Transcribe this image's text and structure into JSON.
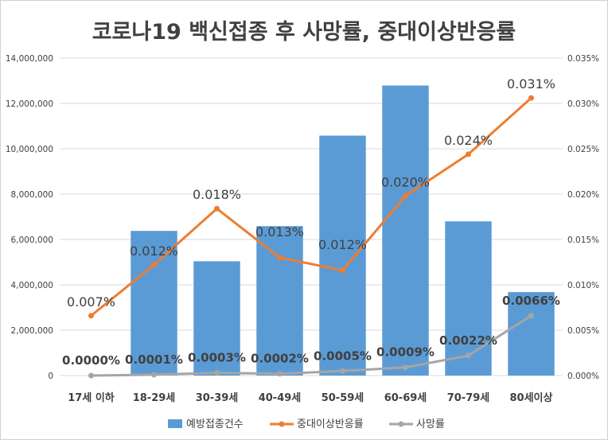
{
  "chart_data": {
    "type": "bar",
    "title": "코로나19 백신접종 후 사망률, 중대이상반응률",
    "categories": [
      "17세 이하",
      "18-29세",
      "30-39세",
      "40-49세",
      "50-59세",
      "60-69세",
      "70-79세",
      "80세이상"
    ],
    "ylim_left": [
      0,
      14000000
    ],
    "ylim_right": [
      0,
      0.035
    ],
    "left_ticks": [
      "0",
      "2,000,000",
      "4,000,000",
      "6,000,000",
      "8,000,000",
      "10,000,000",
      "12,000,000",
      "14,000,000"
    ],
    "right_ticks": [
      "0.000%",
      "0.005%",
      "0.010%",
      "0.015%",
      "0.020%",
      "0.025%",
      "0.030%",
      "0.035%"
    ],
    "grid": true,
    "legend_position": "bottom",
    "series": [
      {
        "name": "예방접종건수",
        "kind": "bar",
        "axis": "left",
        "color": "#5B9BD5",
        "values": [
          0,
          6380000,
          5040000,
          6590000,
          10580000,
          12790000,
          6800000,
          3680000
        ]
      },
      {
        "name": "중대이상반응률",
        "kind": "line",
        "axis": "right",
        "color": "#ED7D31",
        "values": [
          0.0066,
          0.0122,
          0.0184,
          0.013,
          0.0116,
          0.0198,
          0.0244,
          0.0306
        ],
        "labels": [
          "0.007%",
          "0.012%",
          "0.018%",
          "0.013%",
          "0.012%",
          "0.020%",
          "0.024%",
          "0.031%"
        ]
      },
      {
        "name": "사망률",
        "kind": "line",
        "axis": "right",
        "color": "#A5A5A5",
        "values": [
          0.0,
          0.0001,
          0.0003,
          0.0002,
          0.0005,
          0.0009,
          0.0022,
          0.0066
        ],
        "labels": [
          "0.0000%",
          "0.0001%",
          "0.0003%",
          "0.0002%",
          "0.0005%",
          "0.0009%",
          "0.0022%",
          "0.0066%"
        ]
      }
    ]
  }
}
